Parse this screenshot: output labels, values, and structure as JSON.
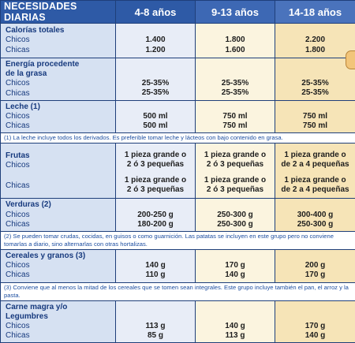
{
  "header": {
    "title": "NECESIDADES DIARIAS",
    "col1": "4-8 años",
    "col2": "9-13 años",
    "col3": "14-18 años"
  },
  "rows": {
    "calorias": {
      "label": "Calorías totales",
      "chicos": "Chicos",
      "chicas": "Chicas",
      "c1": [
        "1.400",
        "1.200"
      ],
      "c2": [
        "1.800",
        "1.600"
      ],
      "c3": [
        "2.200",
        "1.800"
      ]
    },
    "energia": {
      "label1": "Energía procedente",
      "label2": "de la grasa",
      "chicos": "Chicos",
      "chicas": "Chicas",
      "c1": [
        "25-35%",
        "25-35%"
      ],
      "c2": [
        "25-35%",
        "25-35%"
      ],
      "c3": [
        "25-35%",
        "25-35%"
      ]
    },
    "leche": {
      "label": "Leche (1)",
      "chicos": "Chicos",
      "chicas": "Chicas",
      "c1": [
        "500 ml",
        "500 ml"
      ],
      "c2": [
        "750 ml",
        "750 ml"
      ],
      "c3": [
        "750 ml",
        "750 ml"
      ]
    },
    "frutas": {
      "label": "Frutas",
      "chicos": "Chicos",
      "chicas": "Chicas",
      "c1": [
        [
          "1 pieza grande o",
          "2 ó 3 pequeñas"
        ],
        [
          "1 pieza grande o",
          "2 ó 3 pequeñas"
        ]
      ],
      "c2": [
        [
          "1 pieza grande o",
          "2 ó 3 pequeñas"
        ],
        [
          "1 pieza grande o",
          "2 ó 3 pequeñas"
        ]
      ],
      "c3": [
        [
          "1 pieza grande o",
          "de 2 a 4 pequeñas"
        ],
        [
          "1 pieza grande o",
          "de 2 a 4 pequeñas"
        ]
      ]
    },
    "verduras": {
      "label": "Verduras (2)",
      "chicos": "Chicos",
      "chicas": "Chicas",
      "c1": [
        "200-250 g",
        "180-200 g"
      ],
      "c2": [
        "250-300 g",
        "250-300 g"
      ],
      "c3": [
        "300-400 g",
        "250-300 g"
      ]
    },
    "cereales": {
      "label": "Cereales y granos (3)",
      "chicos": "Chicos",
      "chicas": "Chicas",
      "c1": [
        "140 g",
        "110 g"
      ],
      "c2": [
        "170 g",
        "140 g"
      ],
      "c3": [
        "200 g",
        "170 g"
      ]
    },
    "carne": {
      "label1": "Carne magra y/o",
      "label2": "Legumbres",
      "chicos": "Chicos",
      "chicas": "Chicas",
      "c1": [
        "113 g",
        "85 g"
      ],
      "c2": [
        "140 g",
        "113 g"
      ],
      "c3": [
        "170 g",
        "140 g"
      ]
    }
  },
  "notes": {
    "n1": "(1) La leche incluye todos los derivados. Es preferible tomar leche y lácteos con bajo contenido en grasa.",
    "n2": "(2) Se pueden tomar crudas, cocidas, en guisos o como guarnición. Las patatas se incluyen en este grupo pero no conviene tomarlas a diario, sino alternarlas con otras hortalizas.",
    "n3": "(3) Conviene que al menos la mitad de los cereales que se tomen sean integrales. Este grupo incluye también el pan, el arroz y la pasta."
  }
}
